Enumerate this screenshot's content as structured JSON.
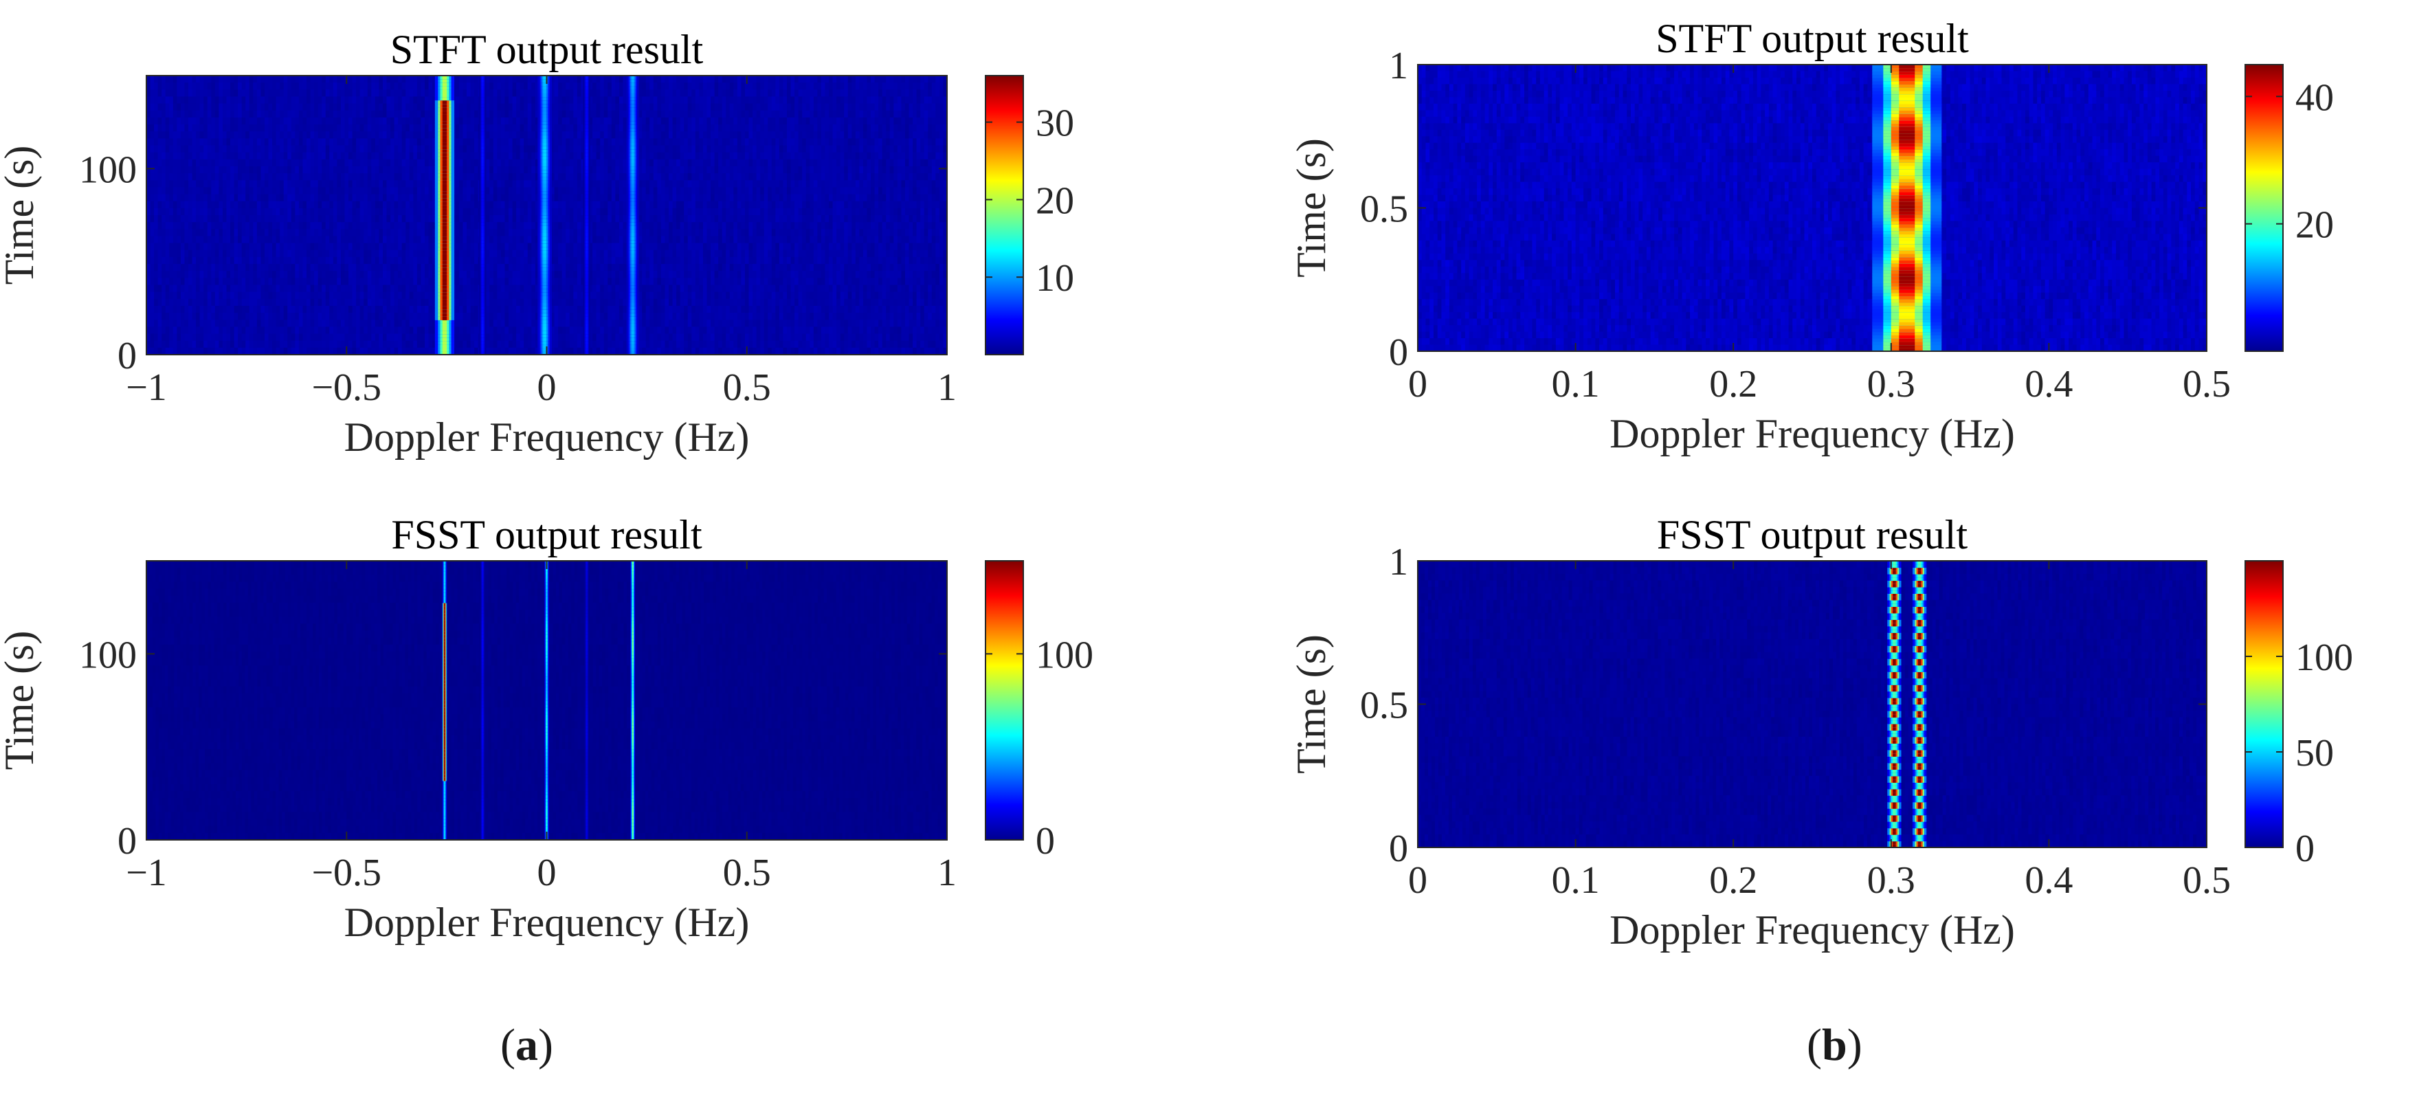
{
  "figure": {
    "panel_labels": [
      {
        "open": "(",
        "letter": "a",
        "close": ")"
      },
      {
        "open": "(",
        "letter": "b",
        "close": ")"
      }
    ]
  },
  "colors": {
    "background_map": "#00008f",
    "colormap": "jet"
  },
  "chart_data": [
    {
      "id": "a-stft",
      "type": "heatmap",
      "title": "STFT output result",
      "xlabel": "Doppler Frequency (Hz)",
      "ylabel": "Time (s)",
      "xlim": [
        -1,
        1
      ],
      "ylim": [
        0,
        150
      ],
      "xticks": [
        -1,
        -0.5,
        0,
        0.5,
        1
      ],
      "xtick_labels": [
        "−1",
        "−0.5",
        "0",
        "0.5",
        "1"
      ],
      "yticks": [
        0,
        100
      ],
      "ytick_labels": [
        "0",
        "100"
      ],
      "colorbar": {
        "min": 0,
        "max": 36,
        "ticks": [
          10,
          20,
          30
        ],
        "tick_labels": [
          "10",
          "20",
          "30"
        ]
      },
      "background_value": 1.5,
      "ridges": [
        {
          "freq": -0.255,
          "width_hz": 0.022,
          "peak": 36,
          "profile": "ends"
        },
        {
          "freq": -0.16,
          "width_hz": 0.008,
          "peak": 5,
          "profile": "flat"
        },
        {
          "freq": -0.005,
          "width_hz": 0.016,
          "peak": 12,
          "profile": "flat"
        },
        {
          "freq": 0.1,
          "width_hz": 0.008,
          "peak": 5,
          "profile": "flat"
        },
        {
          "freq": 0.215,
          "width_hz": 0.014,
          "peak": 11,
          "profile": "flat"
        }
      ]
    },
    {
      "id": "a-fsst",
      "type": "heatmap",
      "title": "FSST output result",
      "xlabel": "Doppler Frequency (Hz)",
      "ylabel": "Time (s)",
      "xlim": [
        -1,
        1
      ],
      "ylim": [
        0,
        150
      ],
      "xticks": [
        -1,
        -0.5,
        0,
        0.5,
        1
      ],
      "xtick_labels": [
        "−1",
        "−0.5",
        "0",
        "0.5",
        "1"
      ],
      "yticks": [
        0,
        100
      ],
      "ytick_labels": [
        "0",
        "100"
      ],
      "colorbar": {
        "min": 0,
        "max": 150,
        "ticks": [
          0,
          100
        ],
        "tick_labels": [
          "0",
          "100"
        ]
      },
      "background_value": 2,
      "ridges": [
        {
          "freq": -0.255,
          "width_hz": 0.005,
          "peak": 150,
          "profile": "mid"
        },
        {
          "freq": -0.16,
          "width_hz": 0.003,
          "peak": 18,
          "profile": "flat"
        },
        {
          "freq": 0.0,
          "width_hz": 0.004,
          "peak": 60,
          "profile": "flat"
        },
        {
          "freq": 0.1,
          "width_hz": 0.003,
          "peak": 15,
          "profile": "flat"
        },
        {
          "freq": 0.215,
          "width_hz": 0.004,
          "peak": 75,
          "profile": "flat"
        }
      ]
    },
    {
      "id": "b-stft",
      "type": "heatmap",
      "title": "STFT output result",
      "xlabel": "Doppler Frequency (Hz)",
      "ylabel": "Time (s)",
      "xlim": [
        0,
        0.5
      ],
      "ylim": [
        0,
        1
      ],
      "xticks": [
        0,
        0.1,
        0.2,
        0.3,
        0.4,
        0.5
      ],
      "xtick_labels": [
        "0",
        "0.1",
        "0.2",
        "0.3",
        "0.4",
        "0.5"
      ],
      "yticks": [
        0,
        0.5,
        1
      ],
      "ytick_labels": [
        "0",
        "0.5",
        "1"
      ],
      "colorbar": {
        "min": 0,
        "max": 45,
        "ticks": [
          20,
          40
        ],
        "tick_labels": [
          "20",
          "40"
        ]
      },
      "background_value": 3,
      "ridges": [
        {
          "freq": 0.31,
          "width_hz": 0.02,
          "peak": 44,
          "profile": "hourglass"
        }
      ]
    },
    {
      "id": "b-fsst",
      "type": "heatmap",
      "title": "FSST output result",
      "xlabel": "Doppler Frequency (Hz)",
      "ylabel": "Time (s)",
      "xlim": [
        0,
        0.5
      ],
      "ylim": [
        0,
        1
      ],
      "xticks": [
        0,
        0.1,
        0.2,
        0.3,
        0.4,
        0.5
      ],
      "xtick_labels": [
        "0",
        "0.1",
        "0.2",
        "0.3",
        "0.4",
        "0.5"
      ],
      "yticks": [
        0,
        0.5,
        1
      ],
      "ytick_labels": [
        "0",
        "0.5",
        "1"
      ],
      "colorbar": {
        "min": 0,
        "max": 150,
        "ticks": [
          0,
          50,
          100
        ],
        "tick_labels": [
          "0",
          "50",
          "100"
        ]
      },
      "background_value": 4,
      "ridges": [
        {
          "freq": 0.302,
          "width_hz": 0.004,
          "peak": 150,
          "profile": "checker"
        },
        {
          "freq": 0.318,
          "width_hz": 0.004,
          "peak": 150,
          "profile": "checker"
        }
      ]
    }
  ]
}
